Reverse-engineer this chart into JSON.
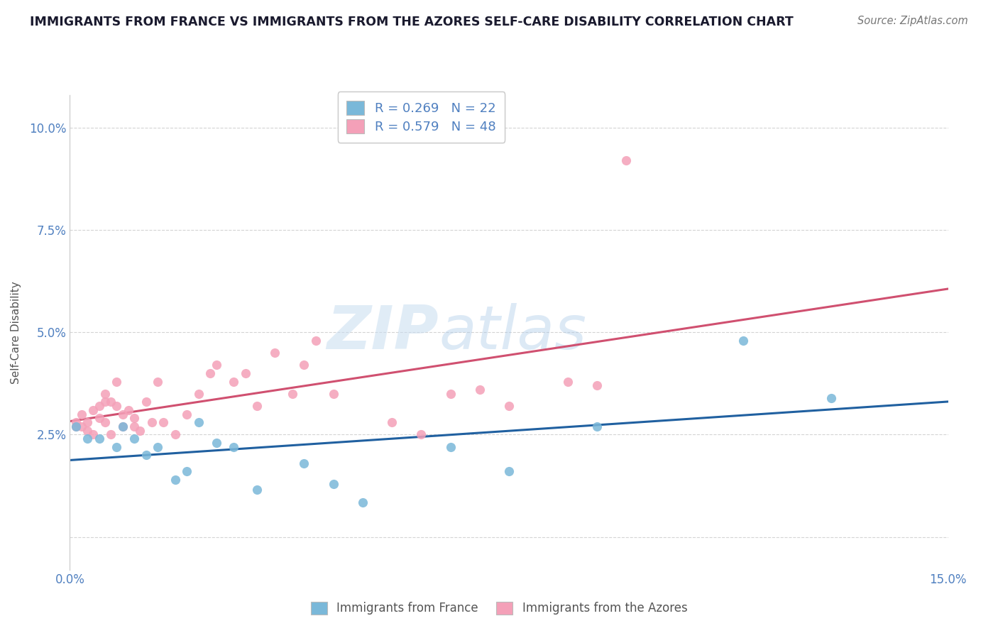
{
  "title": "IMMIGRANTS FROM FRANCE VS IMMIGRANTS FROM THE AZORES SELF-CARE DISABILITY CORRELATION CHART",
  "source": "Source: ZipAtlas.com",
  "ylabel": "Self-Care Disability",
  "france_R": 0.269,
  "france_N": 22,
  "azores_R": 0.579,
  "azores_N": 48,
  "france_color": "#7ab8d9",
  "azores_color": "#f4a0b8",
  "france_line_color": "#2060a0",
  "azores_line_color": "#d05070",
  "france_x": [
    0.001,
    0.003,
    0.005,
    0.008,
    0.009,
    0.011,
    0.013,
    0.015,
    0.018,
    0.02,
    0.022,
    0.025,
    0.028,
    0.032,
    0.04,
    0.045,
    0.05,
    0.065,
    0.075,
    0.09,
    0.115,
    0.13
  ],
  "france_y": [
    0.027,
    0.024,
    0.024,
    0.022,
    0.027,
    0.024,
    0.02,
    0.022,
    0.014,
    0.016,
    0.028,
    0.023,
    0.022,
    0.0115,
    0.018,
    0.013,
    0.0085,
    0.022,
    0.016,
    0.027,
    0.048,
    0.034
  ],
  "azores_x": [
    0.001,
    0.001,
    0.002,
    0.002,
    0.003,
    0.003,
    0.004,
    0.004,
    0.005,
    0.005,
    0.006,
    0.006,
    0.006,
    0.007,
    0.007,
    0.008,
    0.008,
    0.009,
    0.009,
    0.01,
    0.011,
    0.011,
    0.012,
    0.013,
    0.014,
    0.015,
    0.016,
    0.018,
    0.02,
    0.022,
    0.024,
    0.025,
    0.028,
    0.03,
    0.032,
    0.035,
    0.038,
    0.04,
    0.042,
    0.045,
    0.055,
    0.06,
    0.065,
    0.07,
    0.075,
    0.085,
    0.09,
    0.095
  ],
  "azores_y": [
    0.027,
    0.028,
    0.027,
    0.03,
    0.026,
    0.028,
    0.025,
    0.031,
    0.029,
    0.032,
    0.028,
    0.033,
    0.035,
    0.033,
    0.025,
    0.032,
    0.038,
    0.027,
    0.03,
    0.031,
    0.027,
    0.029,
    0.026,
    0.033,
    0.028,
    0.038,
    0.028,
    0.025,
    0.03,
    0.035,
    0.04,
    0.042,
    0.038,
    0.04,
    0.032,
    0.045,
    0.035,
    0.042,
    0.048,
    0.035,
    0.028,
    0.025,
    0.035,
    0.036,
    0.032,
    0.038,
    0.037,
    0.092
  ],
  "watermark_zip": "ZIP",
  "watermark_atlas": "atlas",
  "background_color": "#ffffff",
  "grid_color": "#d0d0d0",
  "xlim": [
    0.0,
    0.15
  ],
  "ylim": [
    -0.008,
    0.108
  ],
  "yticks": [
    0.0,
    0.025,
    0.05,
    0.075,
    0.1
  ],
  "xticks": [
    0.0,
    0.025,
    0.05,
    0.075,
    0.1,
    0.125,
    0.15
  ],
  "tick_color": "#5080c0",
  "title_color": "#1a1a2e",
  "source_color": "#777777",
  "ylabel_color": "#555555"
}
